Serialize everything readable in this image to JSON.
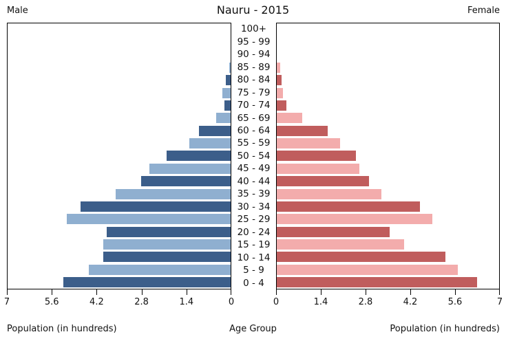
{
  "title": "Nauru - 2015",
  "left_header": "Male",
  "right_header": "Female",
  "footer": {
    "left": "Population (in hundreds)",
    "center": "Age Group",
    "right": "Population (in hundreds)"
  },
  "colors": {
    "male_dark": "#3c5e8a",
    "male_light": "#8fafd0",
    "female_dark": "#c05d5d",
    "female_light": "#f3acac",
    "axis": "#000000",
    "background": "#ffffff"
  },
  "chart_data": {
    "type": "bar",
    "subtype": "population-pyramid",
    "title": "Nauru - 2015",
    "unit": "hundreds",
    "xlim": [
      0,
      7
    ],
    "grid": false,
    "categories_top_to_bottom": [
      "100+",
      "95 - 99",
      "90 - 94",
      "85 - 89",
      "80 - 84",
      "75 - 79",
      "70 - 74",
      "65 - 69",
      "60 - 64",
      "55 - 59",
      "50 - 54",
      "45 - 49",
      "40 - 44",
      "35 - 39",
      "30 - 34",
      "25 - 29",
      "20 - 24",
      "15 - 19",
      "10 - 14",
      "5 - 9",
      "0 - 4"
    ],
    "series": [
      {
        "name": "Male",
        "values": [
          0,
          0,
          0,
          0.05,
          0.15,
          0.25,
          0.2,
          0.45,
          1.0,
          1.3,
          2.0,
          2.55,
          2.8,
          3.6,
          4.7,
          5.15,
          3.9,
          4.0,
          4.0,
          4.45,
          5.25
        ]
      },
      {
        "name": "Female",
        "values": [
          0,
          0,
          0,
          0.1,
          0.15,
          0.2,
          0.3,
          0.8,
          1.6,
          2.0,
          2.5,
          2.6,
          2.9,
          3.3,
          4.5,
          4.9,
          3.55,
          4.0,
          5.3,
          5.7,
          6.3
        ]
      }
    ],
    "axis_ticks": {
      "male_left_to_right": [
        "7",
        "5.6",
        "4.2",
        "2.8",
        "1.4",
        "0"
      ],
      "female_left_to_right": [
        "0",
        "1.4",
        "2.8",
        "4.2",
        "5.6",
        "7"
      ]
    },
    "xlabel_left": "Population (in hundreds)",
    "xlabel_center": "Age Group",
    "xlabel_right": "Population (in hundreds)"
  }
}
